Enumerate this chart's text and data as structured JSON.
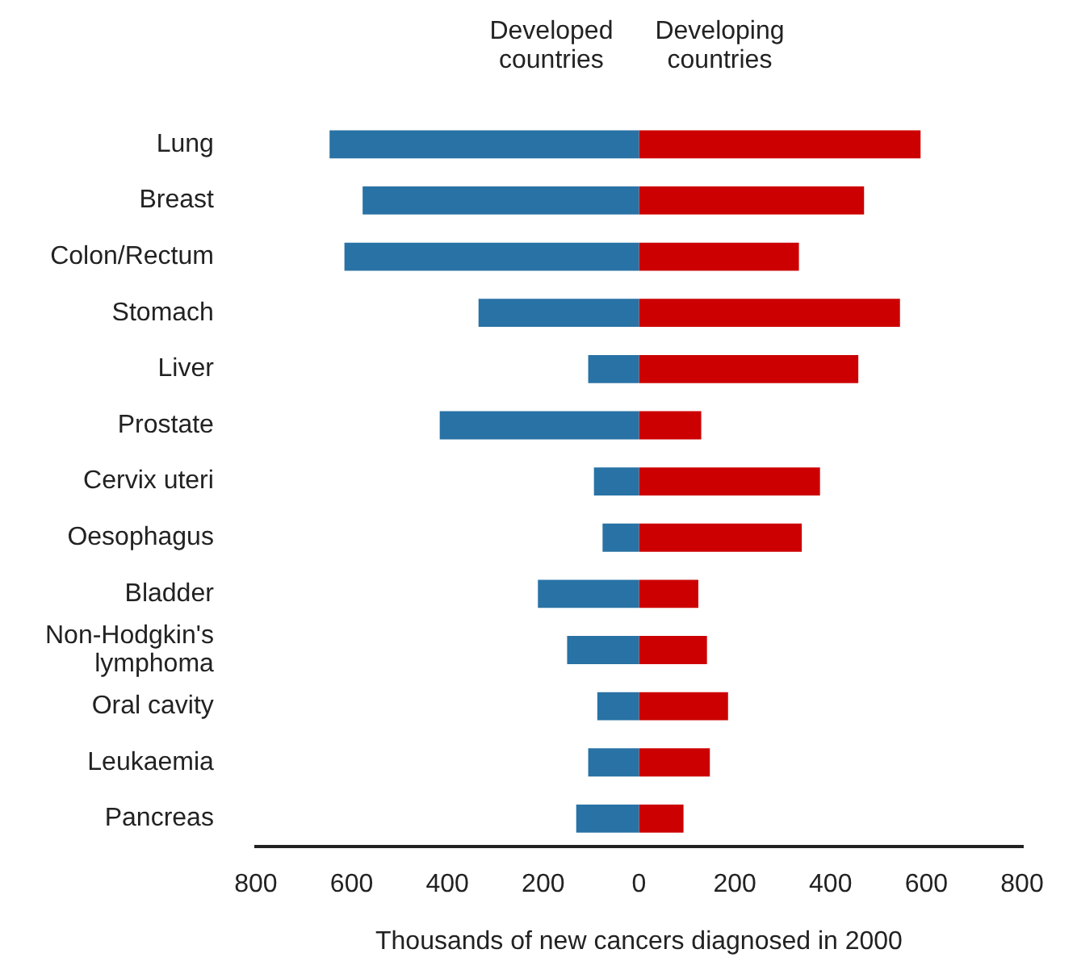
{
  "chart_data": {
    "type": "bar",
    "orientation": "horizontal",
    "stacked": true,
    "xlabel": "Thousands of new cancers diagnosed in 2000",
    "categories": [
      "Lung",
      "Breast",
      "Colon/Rectum",
      "Stomach",
      "Liver",
      "Prostate",
      "Cervix uteri",
      "Oesophagus",
      "Bladder",
      "Non-Hodgkin's lymphoma",
      "Oral cavity",
      "Leukaemia",
      "Pancreas"
    ],
    "series": [
      {
        "name": "Developed countries",
        "color": "#2872a5",
        "values": [
          -646,
          -577,
          -615,
          -335,
          -106,
          -416,
          -94,
          -76,
          -211,
          -150,
          -87,
          -106,
          -131
        ]
      },
      {
        "name": "Developing countries",
        "color": "#cc0000",
        "values": [
          588,
          470,
          334,
          545,
          458,
          130,
          378,
          340,
          124,
          142,
          186,
          148,
          93
        ]
      }
    ],
    "xlim": [
      -800,
      800
    ],
    "xticks": [
      {
        "value": -800,
        "label": "800"
      },
      {
        "value": -600,
        "label": "600"
      },
      {
        "value": -400,
        "label": "400"
      },
      {
        "value": -200,
        "label": "200"
      },
      0,
      200,
      400,
      600,
      800
    ],
    "grid": false,
    "legend": false
  }
}
